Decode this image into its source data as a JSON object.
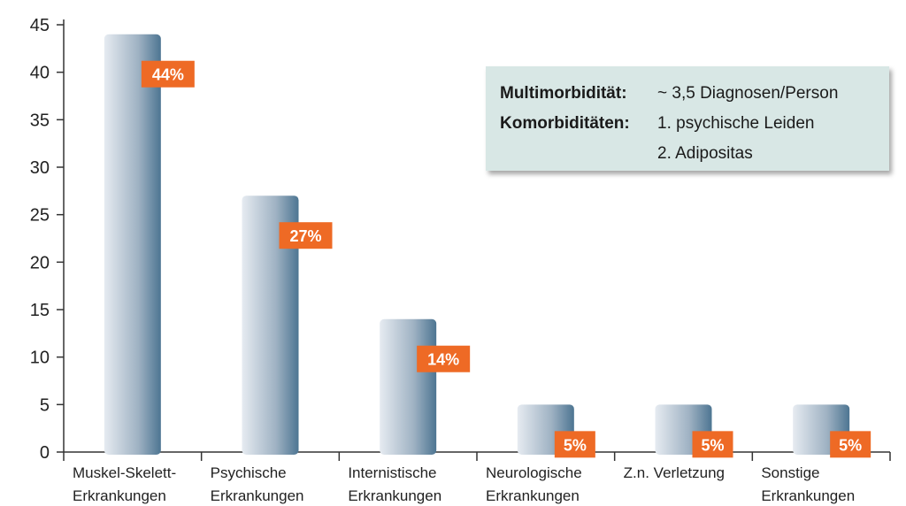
{
  "chart_data": {
    "type": "bar",
    "categories": [
      [
        "Muskel-Skelett-",
        "Erkrankungen"
      ],
      [
        "Psychische",
        "Erkrankungen"
      ],
      [
        "Internistische",
        "Erkrankungen"
      ],
      [
        "Neurologische",
        "Erkrankungen"
      ],
      [
        "Z.n. Verletzung"
      ],
      [
        "Sonstige",
        "Erkrankungen"
      ]
    ],
    "values": [
      44,
      27,
      14,
      5,
      5,
      5
    ],
    "data_labels": [
      "44%",
      "27%",
      "14%",
      "5%",
      "5%",
      "5%"
    ],
    "yticks": [
      0,
      5,
      10,
      15,
      20,
      25,
      30,
      35,
      40,
      45
    ],
    "ylim": [
      0,
      45
    ],
    "title": "",
    "xlabel": "",
    "ylabel": "",
    "grid": false,
    "colors": {
      "bar_light": "#e6ebf1",
      "bar_dark": "#4d7592",
      "label_bg": "#ee6a25",
      "axis": "#333333"
    }
  },
  "info_box": {
    "rows": [
      {
        "key": "Multimorbidität:",
        "value": "~ 3,5 Diagnosen/Person"
      },
      {
        "key": "Komorbiditäten:",
        "value": "1. psychische Leiden"
      },
      {
        "key": "",
        "value": "2. Adipositas"
      }
    ],
    "background": "#d8e7e5"
  }
}
